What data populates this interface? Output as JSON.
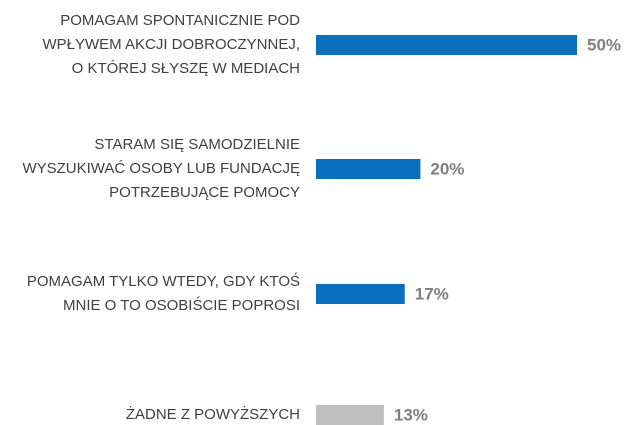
{
  "chart_data": {
    "type": "bar",
    "categories": [
      [
        "POMAGAM SPONTANICZNIE POD",
        "WPŁYWEM AKCJI DOBROCZYNNEJ,",
        "O KTÓREJ SŁYSZĘ W MEDIACH"
      ],
      [
        "STARAM SIĘ SAMODZIELNIE",
        "WYSZUKIWAĆ OSOBY LUB FUNDACJĘ",
        "POTRZEBUJĄCE POMOCY"
      ],
      [
        "POMAGAM TYLKO WTEDY, GDY KTOŚ",
        "MNIE O TO OSOBIŚCIE POPROSI"
      ],
      [
        "ŻADNE Z POWYŻSZYCH"
      ]
    ],
    "values": [
      50,
      20,
      17,
      13
    ],
    "value_labels": [
      "50%",
      "20%",
      "17%",
      "13%"
    ],
    "colors": [
      "#0b6fc0",
      "#0b6fc0",
      "#0b6fc0",
      "#bfbfbf"
    ]
  }
}
